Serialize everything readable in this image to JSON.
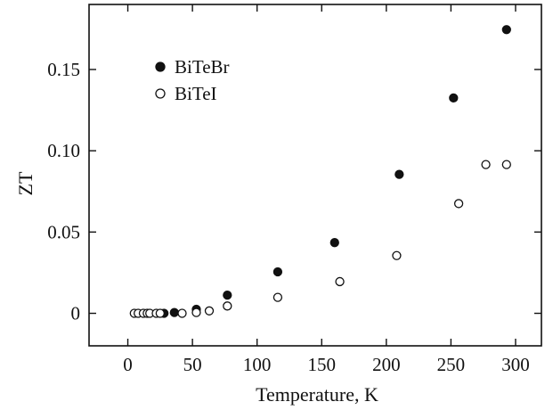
{
  "chart_data": {
    "type": "scatter",
    "title": "",
    "xlabel": "Temperature, K",
    "ylabel": "ZT",
    "xlim": [
      -30,
      320
    ],
    "ylim": [
      -0.02,
      0.19
    ],
    "xticks": [
      0,
      50,
      100,
      150,
      200,
      250,
      300
    ],
    "xtick_labels": [
      "0",
      "50",
      "100",
      "150",
      "200",
      "250",
      "300"
    ],
    "yticks": [
      0,
      0.05,
      0.1,
      0.15
    ],
    "ytick_labels": [
      "0",
      "0.05",
      "0.10",
      "0.15"
    ],
    "grid": false,
    "legend_position": "top-left",
    "series": [
      {
        "name": "BiTeBr",
        "marker": "filled-circle",
        "color": "#111111",
        "x": [
          28,
          36,
          53,
          77,
          116,
          160,
          210,
          252,
          293
        ],
        "y": [
          0.0,
          0.0005,
          0.0025,
          0.0112,
          0.0255,
          0.0435,
          0.0855,
          0.1325,
          0.1745
        ]
      },
      {
        "name": "BiTeI",
        "marker": "open-circle",
        "color": "#111111",
        "x": [
          5,
          8,
          12,
          15,
          17,
          22,
          25,
          42,
          53,
          63,
          77,
          116,
          164,
          208,
          256,
          277,
          293
        ],
        "y": [
          0.0,
          0.0,
          0.0,
          0.0,
          0.0,
          0.0,
          0.0,
          0.0,
          0.0005,
          0.0015,
          0.0045,
          0.0098,
          0.0195,
          0.0355,
          0.0675,
          0.0915,
          0.0915
        ]
      }
    ]
  }
}
